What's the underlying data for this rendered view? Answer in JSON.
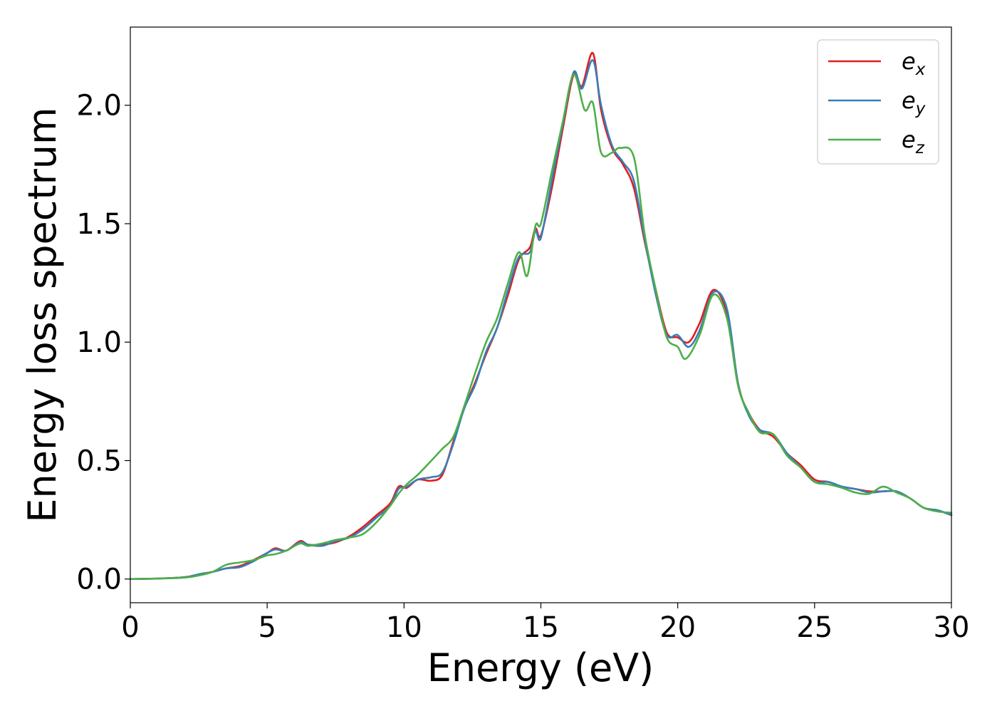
{
  "chart_data": {
    "type": "line",
    "title": "",
    "xlabel": "Energy (eV)",
    "ylabel": "Energy loss spectrum",
    "xlim": [
      0,
      30
    ],
    "ylim": [
      -0.1,
      2.33
    ],
    "xticks": [
      0,
      5,
      10,
      15,
      20,
      25,
      30
    ],
    "xtick_labels": [
      "0",
      "5",
      "10",
      "15",
      "20",
      "25",
      "30"
    ],
    "yticks": [
      0.0,
      0.5,
      1.0,
      1.5,
      2.0
    ],
    "ytick_labels": [
      "0.0",
      "0.5",
      "1.0",
      "1.5",
      "2.0"
    ],
    "grid": false,
    "legend_position": "top-right",
    "series": [
      {
        "name": "ex",
        "label_base": "e",
        "label_sub": "x",
        "color": "#e41a1c",
        "points": [
          [
            0,
            0
          ],
          [
            1,
            0.002
          ],
          [
            2,
            0.008
          ],
          [
            2.5,
            0.02
          ],
          [
            3,
            0.03
          ],
          [
            3.5,
            0.045
          ],
          [
            4,
            0.055
          ],
          [
            4.5,
            0.08
          ],
          [
            5,
            0.11
          ],
          [
            5.3,
            0.13
          ],
          [
            5.7,
            0.12
          ],
          [
            6.2,
            0.16
          ],
          [
            6.5,
            0.145
          ],
          [
            7,
            0.145
          ],
          [
            7.5,
            0.155
          ],
          [
            8,
            0.18
          ],
          [
            8.5,
            0.22
          ],
          [
            9,
            0.27
          ],
          [
            9.5,
            0.32
          ],
          [
            9.8,
            0.39
          ],
          [
            10.1,
            0.385
          ],
          [
            10.5,
            0.42
          ],
          [
            11,
            0.415
          ],
          [
            11.4,
            0.44
          ],
          [
            11.8,
            0.58
          ],
          [
            12.2,
            0.72
          ],
          [
            12.6,
            0.83
          ],
          [
            13,
            0.95
          ],
          [
            13.4,
            1.06
          ],
          [
            13.8,
            1.2
          ],
          [
            14.2,
            1.35
          ],
          [
            14.6,
            1.4
          ],
          [
            14.8,
            1.48
          ],
          [
            15,
            1.45
          ],
          [
            15.4,
            1.65
          ],
          [
            15.8,
            1.9
          ],
          [
            16.2,
            2.13
          ],
          [
            16.5,
            2.08
          ],
          [
            16.9,
            2.22
          ],
          [
            17.2,
            1.98
          ],
          [
            17.6,
            1.82
          ],
          [
            18,
            1.75
          ],
          [
            18.4,
            1.65
          ],
          [
            18.8,
            1.42
          ],
          [
            19.2,
            1.22
          ],
          [
            19.6,
            1.04
          ],
          [
            20,
            1.02
          ],
          [
            20.4,
            1.0
          ],
          [
            20.8,
            1.08
          ],
          [
            21.3,
            1.22
          ],
          [
            21.8,
            1.12
          ],
          [
            22.2,
            0.82
          ],
          [
            22.6,
            0.7
          ],
          [
            23,
            0.63
          ],
          [
            23.5,
            0.6
          ],
          [
            24,
            0.53
          ],
          [
            24.5,
            0.48
          ],
          [
            25,
            0.42
          ],
          [
            25.5,
            0.41
          ],
          [
            26,
            0.39
          ],
          [
            26.5,
            0.38
          ],
          [
            27,
            0.37
          ],
          [
            27.5,
            0.37
          ],
          [
            28,
            0.37
          ],
          [
            28.5,
            0.34
          ],
          [
            29,
            0.3
          ],
          [
            29.5,
            0.29
          ],
          [
            30,
            0.27
          ]
        ]
      },
      {
        "name": "ey",
        "label_base": "e",
        "label_sub": "y",
        "color": "#377eb8",
        "points": [
          [
            0,
            0
          ],
          [
            1,
            0.002
          ],
          [
            2,
            0.008
          ],
          [
            2.5,
            0.02
          ],
          [
            3,
            0.03
          ],
          [
            3.5,
            0.045
          ],
          [
            4,
            0.05
          ],
          [
            4.5,
            0.075
          ],
          [
            5,
            0.11
          ],
          [
            5.3,
            0.125
          ],
          [
            5.7,
            0.12
          ],
          [
            6.2,
            0.155
          ],
          [
            6.5,
            0.145
          ],
          [
            7,
            0.14
          ],
          [
            7.5,
            0.16
          ],
          [
            8,
            0.175
          ],
          [
            8.5,
            0.21
          ],
          [
            9,
            0.26
          ],
          [
            9.5,
            0.31
          ],
          [
            9.8,
            0.38
          ],
          [
            10.1,
            0.39
          ],
          [
            10.5,
            0.42
          ],
          [
            11,
            0.43
          ],
          [
            11.4,
            0.45
          ],
          [
            11.8,
            0.57
          ],
          [
            12.2,
            0.72
          ],
          [
            12.6,
            0.82
          ],
          [
            13,
            0.96
          ],
          [
            13.4,
            1.06
          ],
          [
            13.8,
            1.22
          ],
          [
            14.2,
            1.36
          ],
          [
            14.6,
            1.38
          ],
          [
            14.8,
            1.47
          ],
          [
            15,
            1.44
          ],
          [
            15.4,
            1.68
          ],
          [
            15.8,
            1.92
          ],
          [
            16.2,
            2.14
          ],
          [
            16.5,
            2.07
          ],
          [
            16.9,
            2.19
          ],
          [
            17.2,
            2.0
          ],
          [
            17.6,
            1.83
          ],
          [
            18,
            1.76
          ],
          [
            18.4,
            1.68
          ],
          [
            18.8,
            1.43
          ],
          [
            19.2,
            1.2
          ],
          [
            19.6,
            1.03
          ],
          [
            20,
            1.03
          ],
          [
            20.4,
            0.98
          ],
          [
            20.8,
            1.05
          ],
          [
            21.3,
            1.21
          ],
          [
            21.8,
            1.14
          ],
          [
            22.2,
            0.83
          ],
          [
            22.6,
            0.69
          ],
          [
            23,
            0.63
          ],
          [
            23.5,
            0.61
          ],
          [
            24,
            0.53
          ],
          [
            24.5,
            0.47
          ],
          [
            25,
            0.41
          ],
          [
            25.5,
            0.41
          ],
          [
            26,
            0.39
          ],
          [
            26.5,
            0.38
          ],
          [
            27,
            0.365
          ],
          [
            27.5,
            0.37
          ],
          [
            28,
            0.37
          ],
          [
            28.5,
            0.34
          ],
          [
            29,
            0.3
          ],
          [
            29.5,
            0.29
          ],
          [
            30,
            0.27
          ]
        ]
      },
      {
        "name": "ez",
        "label_base": "e",
        "label_sub": "z",
        "color": "#4daf4a",
        "points": [
          [
            0,
            0
          ],
          [
            1,
            0.002
          ],
          [
            2,
            0.006
          ],
          [
            2.5,
            0.015
          ],
          [
            3,
            0.03
          ],
          [
            3.5,
            0.06
          ],
          [
            4,
            0.07
          ],
          [
            4.5,
            0.08
          ],
          [
            5,
            0.1
          ],
          [
            5.3,
            0.105
          ],
          [
            5.7,
            0.12
          ],
          [
            6.2,
            0.15
          ],
          [
            6.5,
            0.14
          ],
          [
            7,
            0.15
          ],
          [
            7.5,
            0.165
          ],
          [
            8,
            0.175
          ],
          [
            8.5,
            0.19
          ],
          [
            9,
            0.24
          ],
          [
            9.5,
            0.31
          ],
          [
            9.8,
            0.36
          ],
          [
            10.1,
            0.4
          ],
          [
            10.5,
            0.44
          ],
          [
            11,
            0.5
          ],
          [
            11.4,
            0.55
          ],
          [
            11.8,
            0.6
          ],
          [
            12.2,
            0.73
          ],
          [
            12.6,
            0.87
          ],
          [
            13,
            1.0
          ],
          [
            13.4,
            1.1
          ],
          [
            13.8,
            1.25
          ],
          [
            14.2,
            1.38
          ],
          [
            14.5,
            1.28
          ],
          [
            14.8,
            1.49
          ],
          [
            15,
            1.5
          ],
          [
            15.4,
            1.72
          ],
          [
            15.8,
            1.93
          ],
          [
            16.2,
            2.13
          ],
          [
            16.6,
            1.98
          ],
          [
            16.9,
            2.01
          ],
          [
            17.2,
            1.8
          ],
          [
            17.6,
            1.8
          ],
          [
            17.9,
            1.82
          ],
          [
            18.4,
            1.78
          ],
          [
            18.8,
            1.45
          ],
          [
            19.2,
            1.22
          ],
          [
            19.6,
            1.02
          ],
          [
            20,
            0.98
          ],
          [
            20.3,
            0.93
          ],
          [
            20.8,
            1.03
          ],
          [
            21.3,
            1.2
          ],
          [
            21.8,
            1.1
          ],
          [
            22.2,
            0.82
          ],
          [
            22.6,
            0.7
          ],
          [
            23,
            0.62
          ],
          [
            23.5,
            0.61
          ],
          [
            24,
            0.52
          ],
          [
            24.5,
            0.47
          ],
          [
            25,
            0.41
          ],
          [
            25.5,
            0.4
          ],
          [
            26,
            0.385
          ],
          [
            26.5,
            0.365
          ],
          [
            27,
            0.36
          ],
          [
            27.5,
            0.39
          ],
          [
            28,
            0.365
          ],
          [
            28.5,
            0.34
          ],
          [
            29,
            0.3
          ],
          [
            29.5,
            0.285
          ],
          [
            30,
            0.28
          ]
        ]
      }
    ]
  }
}
